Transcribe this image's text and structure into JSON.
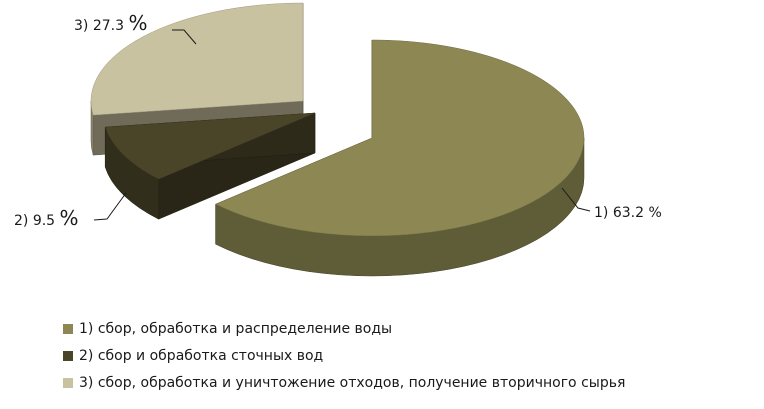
{
  "chart_data": {
    "type": "pie",
    "style": "3d-exploded",
    "categories": [
      "1) сбор, обработка и распределение воды",
      "2) сбор и обработка сточных  вод",
      "3) сбор, обработка и уничтожение отходов, получение вторичного сырья"
    ],
    "values": [
      63.2,
      9.5,
      27.3
    ],
    "unit": "%",
    "data_labels": [
      {
        "index": "1)",
        "value": "63.2",
        "unit": "%"
      },
      {
        "index": "2)",
        "value": "9.5",
        "unit": "%"
      },
      {
        "index": "3)",
        "value": "27.3",
        "unit": "%"
      }
    ],
    "colors": [
      "#8c8753",
      "#4a4429",
      "#c9c2a0"
    ],
    "legend_position": "bottom",
    "title": ""
  }
}
